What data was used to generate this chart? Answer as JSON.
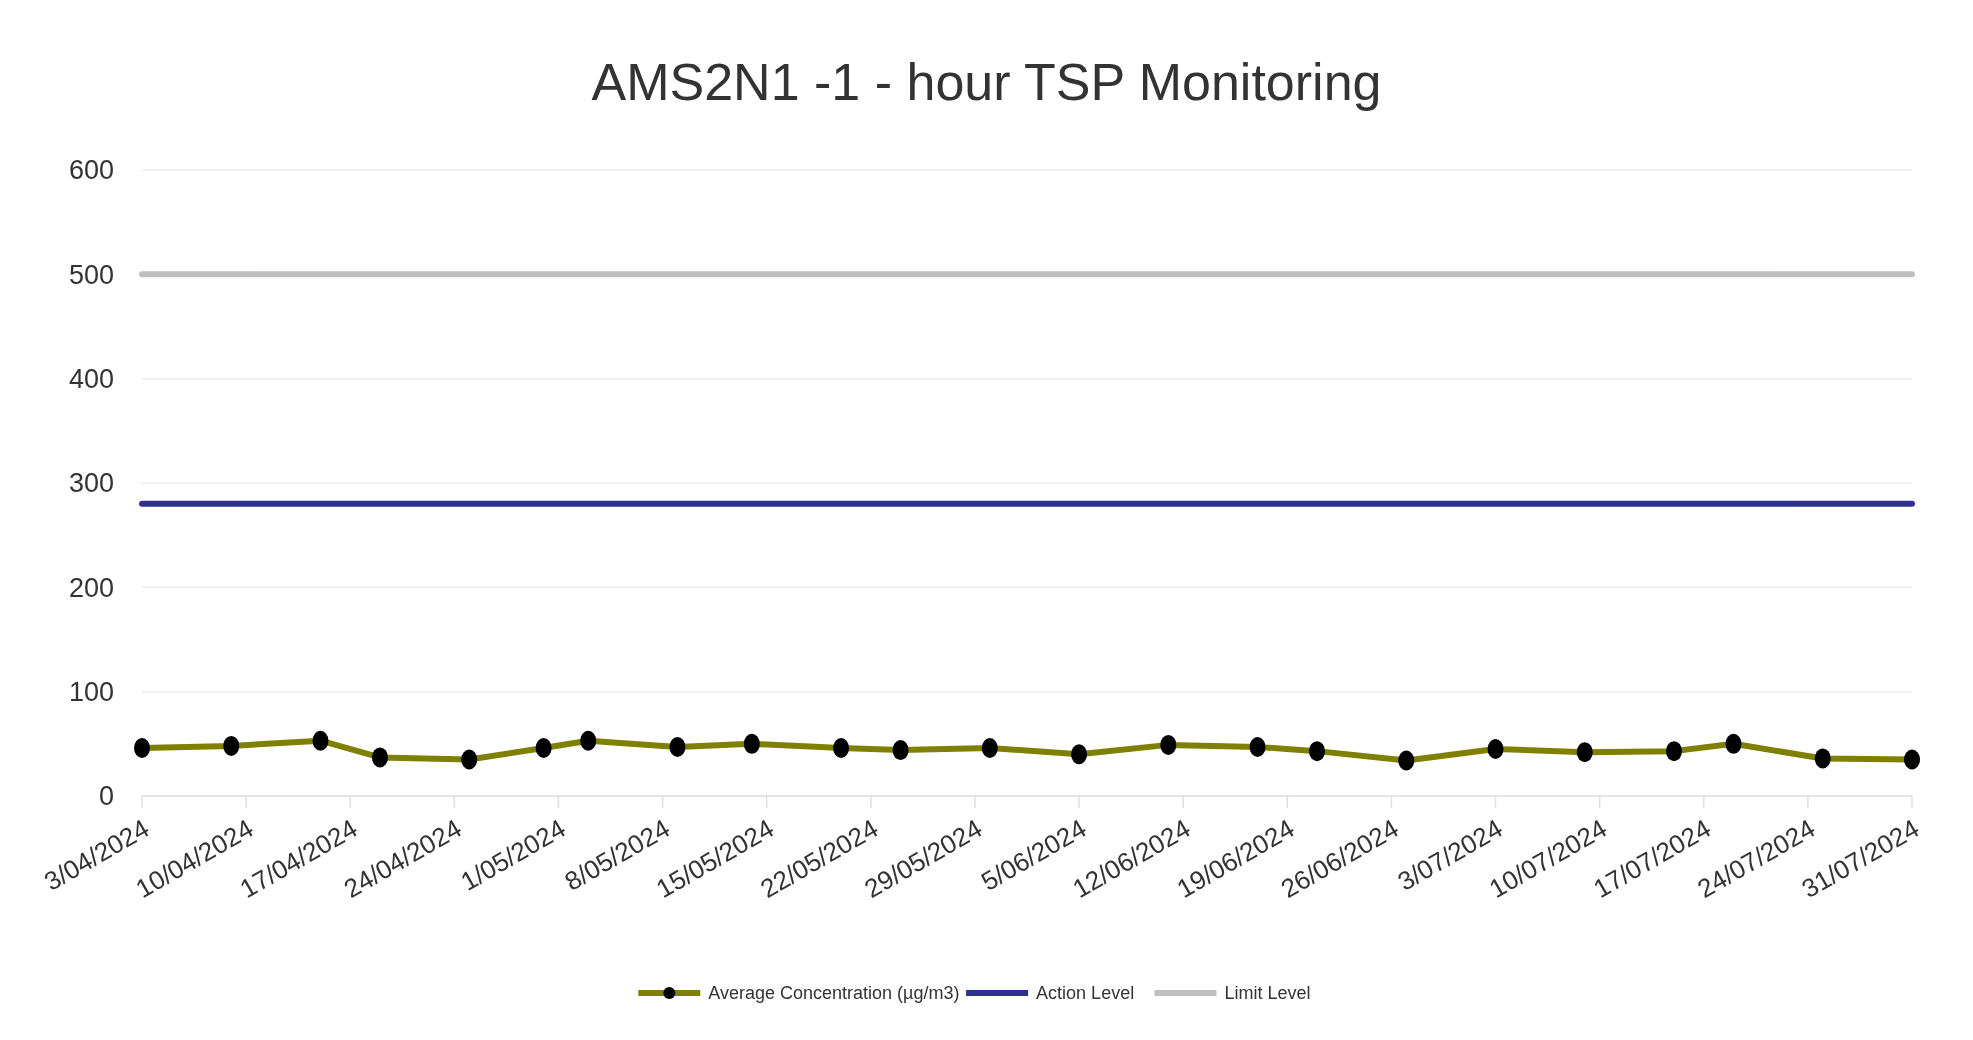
{
  "chart_data": {
    "type": "line",
    "title": "AMS2N1 -1 - hour TSP Monitoring",
    "xlim": [
      "2024-04-03",
      "2024-07-31"
    ],
    "xticks": [
      {
        "value": "2024-04-03",
        "label": "3/04/2024"
      },
      {
        "value": "2024-04-10",
        "label": "10/04/2024"
      },
      {
        "value": "2024-04-17",
        "label": "17/04/2024"
      },
      {
        "value": "2024-04-24",
        "label": "24/04/2024"
      },
      {
        "value": "2024-05-01",
        "label": "1/05/2024"
      },
      {
        "value": "2024-05-08",
        "label": "8/05/2024"
      },
      {
        "value": "2024-05-15",
        "label": "15/05/2024"
      },
      {
        "value": "2024-05-22",
        "label": "22/05/2024"
      },
      {
        "value": "2024-05-29",
        "label": "29/05/2024"
      },
      {
        "value": "2024-06-05",
        "label": "5/06/2024"
      },
      {
        "value": "2024-06-12",
        "label": "12/06/2024"
      },
      {
        "value": "2024-06-19",
        "label": "19/06/2024"
      },
      {
        "value": "2024-06-26",
        "label": "26/06/2024"
      },
      {
        "value": "2024-07-03",
        "label": "3/07/2024"
      },
      {
        "value": "2024-07-10",
        "label": "10/07/2024"
      },
      {
        "value": "2024-07-17",
        "label": "17/07/2024"
      },
      {
        "value": "2024-07-24",
        "label": "24/07/2024"
      },
      {
        "value": "2024-07-31",
        "label": "31/07/2024"
      }
    ],
    "ylim": [
      0,
      600
    ],
    "yticks": [
      0,
      100,
      200,
      300,
      400,
      500,
      600
    ],
    "grid": "y",
    "legend": "bottom",
    "series": [
      {
        "name": "Average Concentration (µg/m3)",
        "color": "#808000",
        "marker": "circle",
        "x": [
          "2024-04-03",
          "2024-04-09",
          "2024-04-15",
          "2024-04-19",
          "2024-04-25",
          "2024-04-30",
          "2024-05-03",
          "2024-05-09",
          "2024-05-14",
          "2024-05-20",
          "2024-05-24",
          "2024-05-30",
          "2024-06-05",
          "2024-06-11",
          "2024-06-17",
          "2024-06-21",
          "2024-06-27",
          "2024-07-03",
          "2024-07-09",
          "2024-07-15",
          "2024-07-19",
          "2024-07-25",
          "2024-07-31"
        ],
        "values": [
          46,
          48,
          53,
          37,
          35,
          46,
          53,
          47,
          50,
          46,
          44,
          46,
          40,
          49,
          47,
          43,
          34,
          45,
          42,
          43,
          50,
          36,
          35
        ]
      },
      {
        "name": "Action Level",
        "color": "#2e3192",
        "marker": "none",
        "x": [
          "2024-04-03",
          "2024-07-31"
        ],
        "values": [
          280,
          280
        ]
      },
      {
        "name": "Limit Level",
        "color": "#bfbfbf",
        "marker": "none",
        "x": [
          "2024-04-03",
          "2024-07-31"
        ],
        "values": [
          500,
          500
        ]
      }
    ]
  }
}
